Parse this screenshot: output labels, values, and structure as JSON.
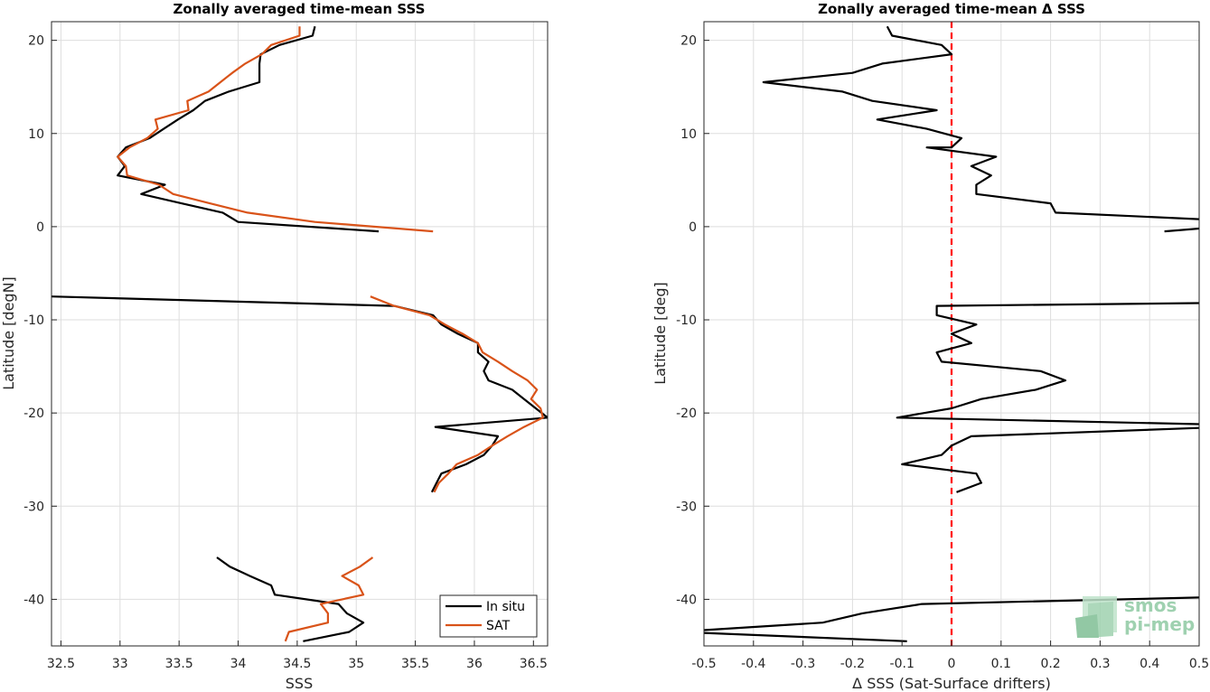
{
  "chart_data": [
    {
      "type": "line",
      "title": "Zonally averaged time-mean SSS",
      "xlabel": "SSS",
      "ylabel": "Latitude [degN]",
      "xlim": [
        32.42,
        36.62
      ],
      "ylim": [
        -45,
        22
      ],
      "xticks": [
        32.5,
        33,
        33.5,
        34,
        34.5,
        35,
        35.5,
        36,
        36.5
      ],
      "xtick_labels": [
        "32.5",
        "33",
        "33.5",
        "34",
        "34.5",
        "35",
        "35.5",
        "36",
        "36.5"
      ],
      "yticks": [
        20,
        10,
        0,
        -10,
        -20,
        -30,
        -40
      ],
      "ytick_labels": [
        "20",
        "10",
        "0",
        "-10",
        "-20",
        "-30",
        "-40"
      ],
      "grid": true,
      "legend_position": "bottom-right",
      "series": [
        {
          "name": "In situ",
          "color": "#000000",
          "segments": [
            [
              [
                34.65,
                21.5
              ],
              [
                34.63,
                20.5
              ],
              [
                34.35,
                19.5
              ],
              [
                34.19,
                18.5
              ],
              [
                34.18,
                17.5
              ],
              [
                34.18,
                16.5
              ],
              [
                34.18,
                15.5
              ],
              [
                33.92,
                14.5
              ],
              [
                33.72,
                13.5
              ],
              [
                33.62,
                12.5
              ],
              [
                33.49,
                11.5
              ],
              [
                33.37,
                10.5
              ],
              [
                33.25,
                9.5
              ],
              [
                33.05,
                8.5
              ],
              [
                32.98,
                7.5
              ],
              [
                33.04,
                6.5
              ],
              [
                32.98,
                5.5
              ],
              [
                33.38,
                4.5
              ],
              [
                33.18,
                3.5
              ],
              [
                33.52,
                2.5
              ],
              [
                33.87,
                1.5
              ],
              [
                34.0,
                0.5
              ],
              [
                35.19,
                -0.5
              ]
            ],
            [
              [
                32.42,
                -7.5
              ],
              [
                35.32,
                -8.5
              ],
              [
                35.65,
                -9.5
              ],
              [
                35.72,
                -10.5
              ],
              [
                35.86,
                -11.5
              ],
              [
                36.03,
                -12.5
              ],
              [
                36.03,
                -13.5
              ],
              [
                36.12,
                -14.5
              ],
              [
                36.08,
                -15.5
              ],
              [
                36.12,
                -16.5
              ],
              [
                36.32,
                -17.5
              ],
              [
                36.42,
                -18.5
              ],
              [
                36.52,
                -19.5
              ],
              [
                36.62,
                -20.5
              ],
              [
                35.67,
                -21.5
              ],
              [
                36.2,
                -22.5
              ],
              [
                36.15,
                -23.5
              ],
              [
                36.08,
                -24.5
              ],
              [
                35.93,
                -25.5
              ],
              [
                35.72,
                -26.5
              ],
              [
                35.68,
                -27.5
              ],
              [
                35.64,
                -28.5
              ]
            ],
            [
              [
                33.82,
                -35.5
              ],
              [
                33.93,
                -36.5
              ],
              [
                34.1,
                -37.5
              ],
              [
                34.28,
                -38.5
              ],
              [
                34.31,
                -39.5
              ],
              [
                34.85,
                -40.5
              ],
              [
                34.92,
                -41.5
              ],
              [
                35.06,
                -42.5
              ],
              [
                34.94,
                -43.5
              ],
              [
                34.55,
                -44.5
              ]
            ]
          ]
        },
        {
          "name": "SAT",
          "color": "#D95319",
          "segments": [
            [
              [
                34.52,
                21.5
              ],
              [
                34.52,
                20.5
              ],
              [
                34.28,
                19.5
              ],
              [
                34.2,
                18.5
              ],
              [
                34.06,
                17.5
              ],
              [
                33.95,
                16.5
              ],
              [
                33.85,
                15.5
              ],
              [
                33.75,
                14.5
              ],
              [
                33.57,
                13.5
              ],
              [
                33.58,
                12.5
              ],
              [
                33.3,
                11.5
              ],
              [
                33.32,
                10.5
              ],
              [
                33.23,
                9.5
              ],
              [
                33.08,
                8.5
              ],
              [
                32.98,
                7.5
              ],
              [
                33.05,
                6.5
              ],
              [
                33.06,
                5.5
              ],
              [
                33.33,
                4.5
              ],
              [
                33.45,
                3.5
              ],
              [
                33.76,
                2.5
              ],
              [
                34.08,
                1.5
              ],
              [
                34.65,
                0.5
              ],
              [
                35.65,
                -0.5
              ]
            ],
            [
              [
                35.12,
                -7.5
              ],
              [
                35.32,
                -8.5
              ],
              [
                35.62,
                -9.5
              ],
              [
                35.75,
                -10.5
              ],
              [
                35.9,
                -11.5
              ],
              [
                36.03,
                -12.5
              ],
              [
                36.07,
                -13.5
              ],
              [
                36.2,
                -14.5
              ],
              [
                36.32,
                -15.5
              ],
              [
                36.45,
                -16.5
              ],
              [
                36.53,
                -17.5
              ],
              [
                36.48,
                -18.5
              ],
              [
                36.56,
                -19.5
              ],
              [
                36.58,
                -20.5
              ],
              [
                36.42,
                -21.5
              ],
              [
                36.28,
                -22.5
              ],
              [
                36.15,
                -23.5
              ],
              [
                36.03,
                -24.5
              ],
              [
                35.85,
                -25.5
              ],
              [
                35.78,
                -26.5
              ],
              [
                35.7,
                -27.5
              ],
              [
                35.66,
                -28.5
              ]
            ],
            [
              [
                35.14,
                -35.5
              ],
              [
                35.03,
                -36.5
              ],
              [
                34.88,
                -37.5
              ],
              [
                35.02,
                -38.5
              ],
              [
                35.06,
                -39.5
              ],
              [
                34.7,
                -40.5
              ],
              [
                34.76,
                -41.5
              ],
              [
                34.76,
                -42.5
              ],
              [
                34.43,
                -43.5
              ],
              [
                34.4,
                -44.5
              ]
            ]
          ]
        }
      ],
      "legend": [
        "In situ",
        "SAT"
      ]
    },
    {
      "type": "line",
      "title": "Zonally averaged time-mean Δ SSS",
      "xlabel": "Δ SSS (Sat-Surface drifters)",
      "ylabel": "Latitude [deg]",
      "xlim": [
        -0.5,
        0.5
      ],
      "ylim": [
        -45,
        22
      ],
      "xticks": [
        -0.5,
        -0.4,
        -0.3,
        -0.2,
        -0.1,
        0,
        0.1,
        0.2,
        0.3,
        0.4,
        0.5
      ],
      "xtick_labels": [
        "-0.5",
        "-0.4",
        "-0.3",
        "-0.2",
        "-0.1",
        "0",
        "0.1",
        "0.2",
        "0.3",
        "0.4",
        "0.5"
      ],
      "yticks": [
        20,
        10,
        0,
        -10,
        -20,
        -30,
        -40
      ],
      "ytick_labels": [
        "20",
        "10",
        "0",
        "-10",
        "-20",
        "-30",
        "-40"
      ],
      "grid": true,
      "reference_line": {
        "x": 0,
        "color": "#ff0000",
        "style": "dashed"
      },
      "series": [
        {
          "color": "#000000",
          "segments": [
            [
              [
                -0.13,
                21.5
              ],
              [
                -0.12,
                20.5
              ],
              [
                -0.02,
                19.5
              ],
              [
                0.0,
                18.5
              ],
              [
                -0.14,
                17.5
              ],
              [
                -0.2,
                16.5
              ],
              [
                -0.38,
                15.5
              ],
              [
                -0.22,
                14.5
              ],
              [
                -0.16,
                13.5
              ],
              [
                -0.03,
                12.5
              ],
              [
                -0.15,
                11.5
              ],
              [
                -0.05,
                10.5
              ],
              [
                0.02,
                9.5
              ],
              [
                0.0,
                8.5
              ],
              [
                -0.05,
                8.5
              ],
              [
                0.09,
                7.5
              ],
              [
                0.04,
                6.5
              ],
              [
                0.08,
                5.5
              ],
              [
                0.05,
                4.5
              ],
              [
                0.05,
                3.5
              ],
              [
                0.2,
                2.5
              ],
              [
                0.21,
                1.5
              ],
              [
                0.5,
                0.8
              ]
            ],
            [
              [
                0.5,
                -0.2
              ],
              [
                0.43,
                -0.5
              ]
            ],
            [
              [
                0.5,
                -8.2
              ],
              [
                -0.03,
                -8.5
              ],
              [
                -0.03,
                -9.5
              ],
              [
                0.05,
                -10.5
              ],
              [
                0.0,
                -11.5
              ],
              [
                0.04,
                -12.5
              ],
              [
                -0.03,
                -13.5
              ],
              [
                -0.02,
                -14.5
              ],
              [
                0.18,
                -15.5
              ],
              [
                0.23,
                -16.5
              ],
              [
                0.17,
                -17.5
              ],
              [
                0.06,
                -18.5
              ],
              [
                0.0,
                -19.5
              ],
              [
                -0.11,
                -20.5
              ],
              [
                0.5,
                -21.2
              ]
            ],
            [
              [
                0.5,
                -21.6
              ],
              [
                0.04,
                -22.5
              ],
              [
                0.0,
                -23.5
              ],
              [
                -0.02,
                -24.5
              ],
              [
                -0.1,
                -25.5
              ],
              [
                0.05,
                -26.5
              ],
              [
                0.06,
                -27.5
              ],
              [
                0.01,
                -28.5
              ]
            ],
            [
              [
                0.5,
                -39.8
              ],
              [
                -0.06,
                -40.5
              ],
              [
                -0.18,
                -41.5
              ],
              [
                -0.26,
                -42.5
              ],
              [
                -0.5,
                -43.3
              ]
            ],
            [
              [
                -0.5,
                -43.6
              ],
              [
                -0.09,
                -44.5
              ]
            ]
          ]
        }
      ]
    }
  ],
  "logo": {
    "line1": "smos",
    "line2": "pi-mep",
    "color": "#8fc9a3"
  }
}
